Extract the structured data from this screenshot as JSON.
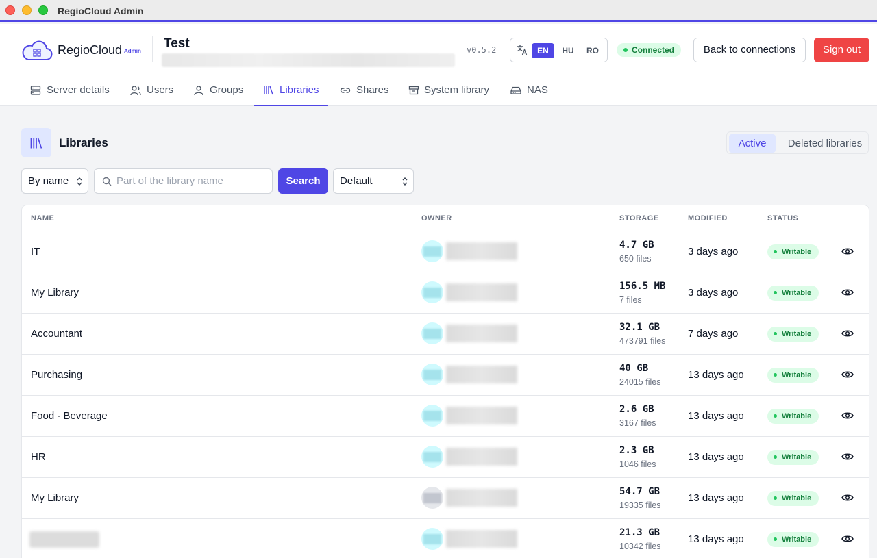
{
  "window": {
    "title": "RegioCloud Admin"
  },
  "header": {
    "brand": "RegioCloud",
    "brand_badge": "Admin",
    "connection_title": "Test",
    "version": "v0.5.2",
    "languages": [
      "EN",
      "HU",
      "RO"
    ],
    "active_language": "EN",
    "status": "Connected",
    "back_label": "Back to connections",
    "signout_label": "Sign out"
  },
  "tabs": [
    {
      "label": "Server details",
      "icon": "server-icon"
    },
    {
      "label": "Users",
      "icon": "user-icon"
    },
    {
      "label": "Groups",
      "icon": "group-icon"
    },
    {
      "label": "Libraries",
      "icon": "library-icon",
      "active": true
    },
    {
      "label": "Shares",
      "icon": "link-icon"
    },
    {
      "label": "System library",
      "icon": "archive-icon"
    },
    {
      "label": "NAS",
      "icon": "drive-icon"
    }
  ],
  "libraries": {
    "heading": "Libraries",
    "view_active": "Active",
    "view_deleted": "Deleted libraries",
    "filter_field": "By name",
    "search_placeholder": "Part of the library name",
    "search_label": "Search",
    "sort": "Default",
    "columns": [
      "NAME",
      "OWNER",
      "STORAGE",
      "MODIFIED",
      "STATUS"
    ],
    "rows": [
      {
        "name": "IT",
        "size": "4.7 GB",
        "files": "650 files",
        "modified": "3 days ago",
        "status": "Writable"
      },
      {
        "name": "My Library",
        "size": "156.5 MB",
        "files": "7 files",
        "modified": "3 days ago",
        "status": "Writable"
      },
      {
        "name": "Accountant",
        "size": "32.1 GB",
        "files": "473791 files",
        "modified": "7 days ago",
        "status": "Writable"
      },
      {
        "name": "Purchasing",
        "size": "40 GB",
        "files": "24015 files",
        "modified": "13 days ago",
        "status": "Writable"
      },
      {
        "name": "Food - Beverage",
        "size": "2.6 GB",
        "files": "3167 files",
        "modified": "13 days ago",
        "status": "Writable"
      },
      {
        "name": "HR",
        "size": "2.3 GB",
        "files": "1046 files",
        "modified": "13 days ago",
        "status": "Writable"
      },
      {
        "name": "My Library",
        "size": "54.7 GB",
        "files": "19335 files",
        "modified": "13 days ago",
        "status": "Writable"
      },
      {
        "name": "",
        "size": "21.3 GB",
        "files": "10342 files",
        "modified": "13 days ago",
        "status": "Writable"
      }
    ]
  },
  "colors": {
    "accent": "#4f46e5",
    "danger": "#ef4444",
    "success": "#15803d"
  }
}
